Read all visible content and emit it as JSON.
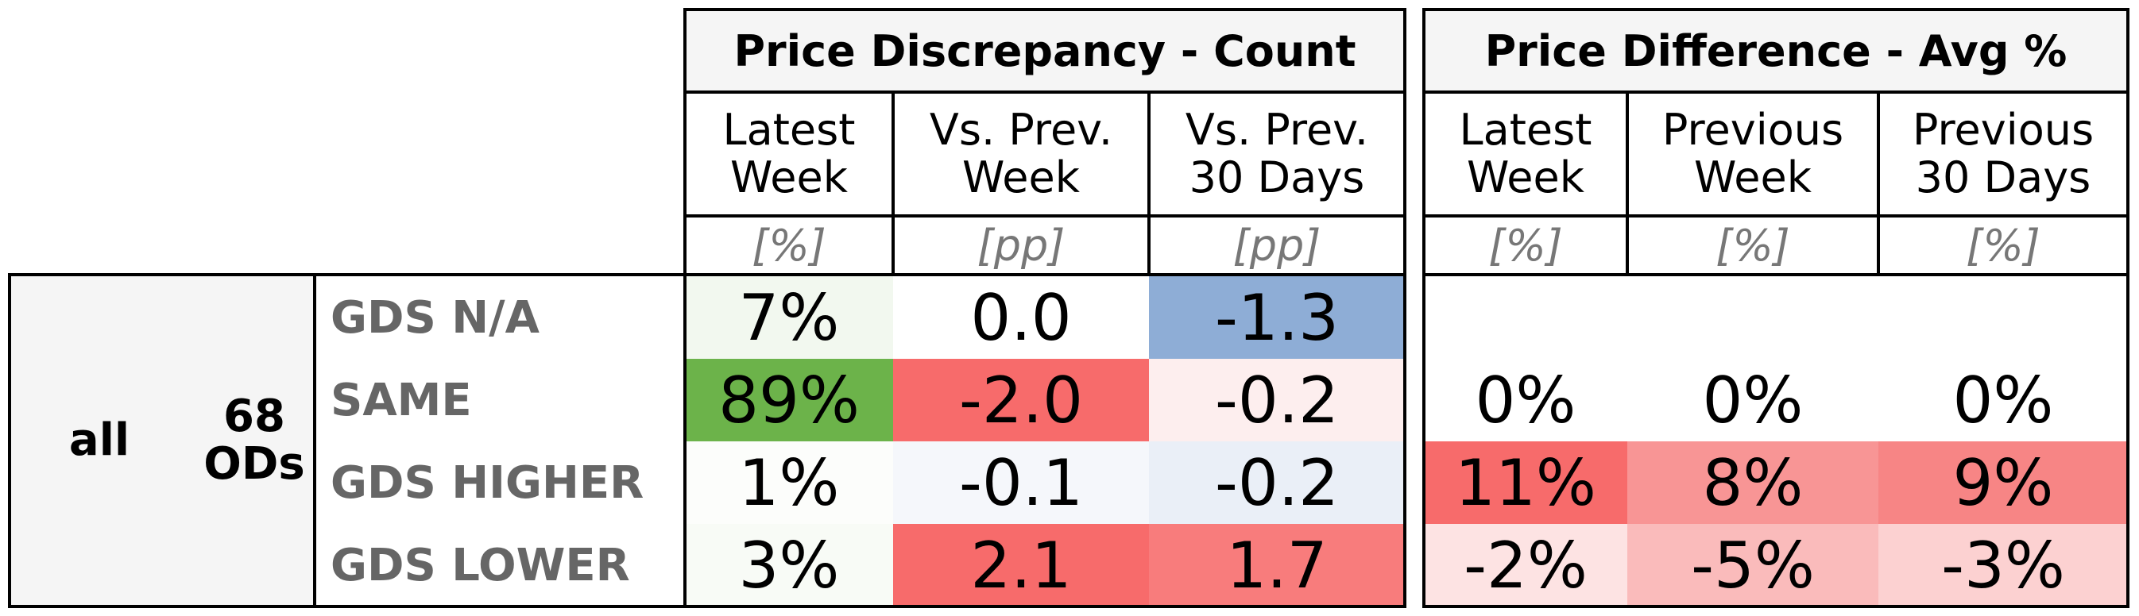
{
  "table": {
    "groups": [
      {
        "title": "Price Discrepancy - Count",
        "columns": [
          {
            "header": "Latest\nWeek",
            "unit": "[%]"
          },
          {
            "header": "Vs. Prev.\nWeek",
            "unit": "[pp]"
          },
          {
            "header": "Vs. Prev.\n30 Days",
            "unit": "[pp]"
          }
        ]
      },
      {
        "title": "Price Difference - Avg %",
        "columns": [
          {
            "header": "Latest\nWeek",
            "unit": "[%]"
          },
          {
            "header": "Previous\nWeek",
            "unit": "[%]"
          },
          {
            "header": "Previous\n30 Days",
            "unit": "[%]"
          }
        ]
      }
    ],
    "row_group": {
      "label": "all",
      "count": "68\nODs"
    },
    "rows": [
      {
        "label": "GDS N/A",
        "count": [
          {
            "v": "7%",
            "bg": "#f2f8ef"
          },
          {
            "v": "0.0",
            "bg": "#ffffff"
          },
          {
            "v": "-1.3",
            "bg": "#8eadd6"
          }
        ],
        "diff": [
          {
            "v": "",
            "bg": "#ffffff"
          },
          {
            "v": "",
            "bg": "#ffffff"
          },
          {
            "v": "",
            "bg": "#ffffff"
          }
        ]
      },
      {
        "label": "SAME",
        "count": [
          {
            "v": "89%",
            "bg": "#6cb34a"
          },
          {
            "v": "-2.0",
            "bg": "#f76b6b"
          },
          {
            "v": "-0.2",
            "bg": "#fdeeee"
          }
        ],
        "diff": [
          {
            "v": "0%",
            "bg": "#ffffff"
          },
          {
            "v": "0%",
            "bg": "#ffffff"
          },
          {
            "v": "0%",
            "bg": "#ffffff"
          }
        ]
      },
      {
        "label": "GDS HIGHER",
        "count": [
          {
            "v": "1%",
            "bg": "#fcfdfb"
          },
          {
            "v": "-0.1",
            "bg": "#f5f7fb"
          },
          {
            "v": "-0.2",
            "bg": "#eaeff7"
          }
        ],
        "diff": [
          {
            "v": "11%",
            "bg": "#f76b6b"
          },
          {
            "v": "8%",
            "bg": "#f89595"
          },
          {
            "v": "9%",
            "bg": "#f78585"
          }
        ]
      },
      {
        "label": "GDS LOWER",
        "count": [
          {
            "v": "3%",
            "bg": "#f8fbf6"
          },
          {
            "v": "2.1",
            "bg": "#f76b6b"
          },
          {
            "v": "1.7",
            "bg": "#f87c7c"
          }
        ],
        "diff": [
          {
            "v": "-2%",
            "bg": "#fde3e3"
          },
          {
            "v": "-5%",
            "bg": "#fabbbb"
          },
          {
            "v": "-3%",
            "bg": "#fcd1d1"
          }
        ]
      }
    ]
  }
}
